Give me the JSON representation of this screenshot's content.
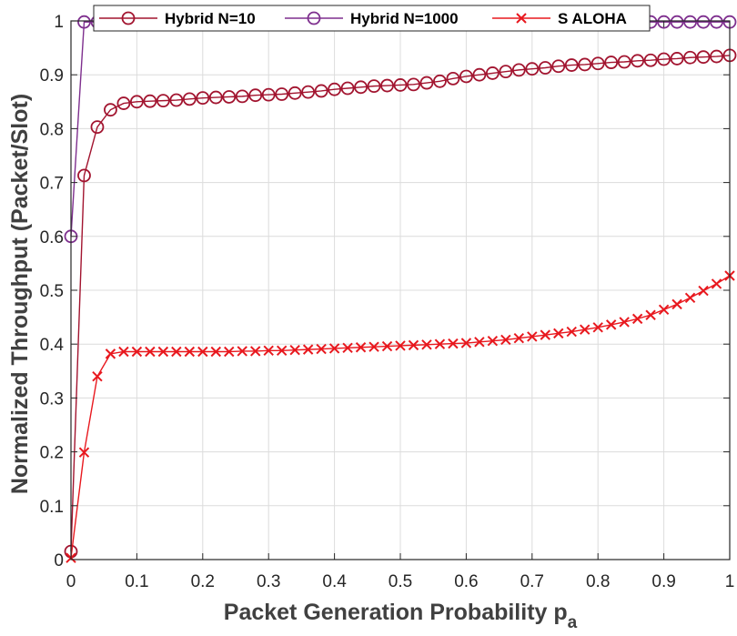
{
  "chart_data": {
    "type": "line",
    "xlabel": "Packet Generation Probability p",
    "xlabel_subscript": "a",
    "ylabel": "Normalized Throughput (Packet/Slot)",
    "xlim": [
      0,
      1
    ],
    "ylim": [
      0,
      1
    ],
    "grid": true,
    "legend_position": "top",
    "xticks": [
      0,
      0.1,
      0.2,
      0.3,
      0.4,
      0.5,
      0.6,
      0.7,
      0.8,
      0.9,
      1
    ],
    "xtick_labels": [
      "0",
      "0.1",
      "0.2",
      "0.3",
      "0.4",
      "0.5",
      "0.6",
      "0.7",
      "0.8",
      "0.9",
      "1"
    ],
    "yticks": [
      0,
      0.1,
      0.2,
      0.3,
      0.4,
      0.5,
      0.6,
      0.7,
      0.8,
      0.9,
      1
    ],
    "ytick_labels": [
      "0",
      "0.1",
      "0.2",
      "0.3",
      "0.4",
      "0.5",
      "0.6",
      "0.7",
      "0.8",
      "0.9",
      "1"
    ],
    "x": [
      0,
      0.02,
      0.04,
      0.06,
      0.08,
      0.1,
      0.12,
      0.14,
      0.16,
      0.18,
      0.2,
      0.22,
      0.24,
      0.26,
      0.28,
      0.3,
      0.32,
      0.34,
      0.36,
      0.38,
      0.4,
      0.42,
      0.44,
      0.46,
      0.48,
      0.5,
      0.52,
      0.54,
      0.56,
      0.58,
      0.6,
      0.62,
      0.64,
      0.66,
      0.68,
      0.7,
      0.72,
      0.74,
      0.76,
      0.78,
      0.8,
      0.82,
      0.84,
      0.86,
      0.88,
      0.9,
      0.92,
      0.94,
      0.96,
      0.98,
      1
    ],
    "series": [
      {
        "name": "Hybrid N=10",
        "color": "#a2142f",
        "marker": "circle",
        "values": [
          0.015,
          0.713,
          0.803,
          0.835,
          0.847,
          0.85,
          0.851,
          0.852,
          0.853,
          0.855,
          0.857,
          0.858,
          0.859,
          0.86,
          0.862,
          0.863,
          0.864,
          0.866,
          0.868,
          0.87,
          0.873,
          0.875,
          0.877,
          0.879,
          0.88,
          0.881,
          0.882,
          0.885,
          0.888,
          0.893,
          0.897,
          0.9,
          0.903,
          0.906,
          0.909,
          0.911,
          0.913,
          0.916,
          0.918,
          0.919,
          0.921,
          0.923,
          0.924,
          0.926,
          0.927,
          0.929,
          0.93,
          0.932,
          0.933,
          0.934,
          0.936
        ]
      },
      {
        "name": "Hybrid N=1000",
        "color": "#7e2f8e",
        "marker": "circle",
        "values": [
          0.6,
          0.998,
          0.998,
          0.998,
          0.998,
          0.998,
          0.998,
          0.998,
          0.998,
          0.998,
          0.998,
          0.998,
          0.998,
          0.998,
          0.998,
          0.998,
          0.998,
          0.998,
          0.998,
          0.998,
          0.998,
          0.998,
          0.998,
          0.998,
          0.998,
          0.998,
          0.998,
          0.998,
          0.998,
          0.998,
          0.998,
          0.998,
          0.998,
          0.998,
          0.998,
          0.998,
          0.998,
          0.998,
          0.998,
          0.998,
          0.998,
          0.998,
          0.998,
          0.998,
          0.998,
          0.998,
          0.998,
          0.998,
          0.998,
          0.998,
          0.998
        ]
      },
      {
        "name": "S ALOHA",
        "color": "#e8181e",
        "marker": "x",
        "values": [
          0.003,
          0.199,
          0.34,
          0.382,
          0.386,
          0.386,
          0.386,
          0.386,
          0.386,
          0.386,
          0.386,
          0.386,
          0.386,
          0.387,
          0.387,
          0.388,
          0.388,
          0.389,
          0.39,
          0.391,
          0.392,
          0.393,
          0.394,
          0.395,
          0.396,
          0.397,
          0.398,
          0.399,
          0.4,
          0.401,
          0.402,
          0.404,
          0.406,
          0.408,
          0.411,
          0.414,
          0.417,
          0.42,
          0.423,
          0.427,
          0.431,
          0.436,
          0.441,
          0.447,
          0.454,
          0.464,
          0.474,
          0.486,
          0.499,
          0.512,
          0.527
        ]
      }
    ]
  }
}
